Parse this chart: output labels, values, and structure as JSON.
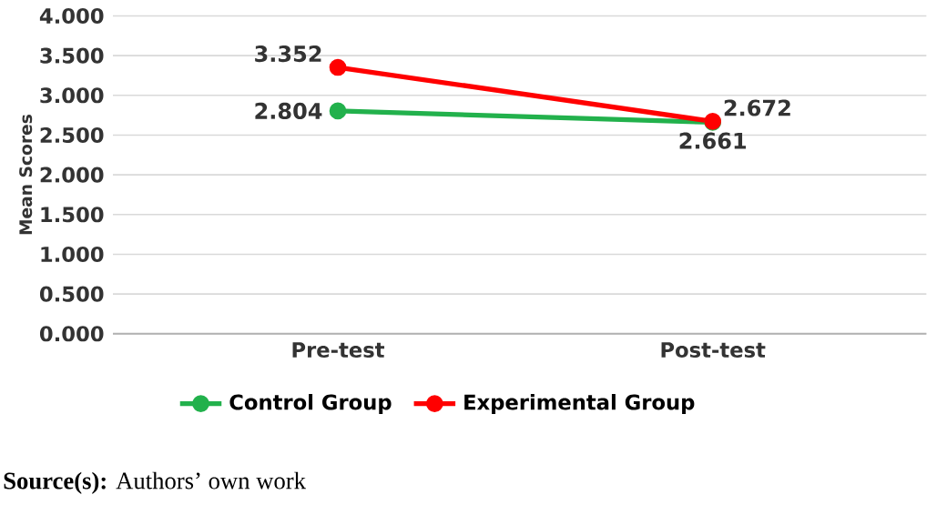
{
  "chart_data": {
    "type": "line",
    "categories": [
      "Pre-test",
      "Post-test"
    ],
    "ylabel": "Mean Scores",
    "series": [
      {
        "name": "Control Group",
        "color": "#22b14c",
        "values": [
          2.804,
          2.661
        ]
      },
      {
        "name": "Experimental Group",
        "color": "#ff0000",
        "values": [
          3.352,
          2.672
        ]
      }
    ],
    "ylim": [
      0,
      4
    ],
    "yticks": [
      {
        "value": 0,
        "label": "0.000"
      },
      {
        "value": 0.5,
        "label": "0.500"
      },
      {
        "value": 1,
        "label": "1.000"
      },
      {
        "value": 1.5,
        "label": "1.500"
      },
      {
        "value": 2,
        "label": "2.000"
      },
      {
        "value": 2.5,
        "label": "2.500"
      },
      {
        "value": 3,
        "label": "3.000"
      },
      {
        "value": 3.5,
        "label": "3.500"
      },
      {
        "value": 4,
        "label": "4.000"
      }
    ],
    "grid": "y",
    "legend": "bottom",
    "marker": "circle",
    "line_style": "solid",
    "data_labels": true,
    "annotations": [
      "**Source(s):** Authors’ own work"
    ]
  }
}
